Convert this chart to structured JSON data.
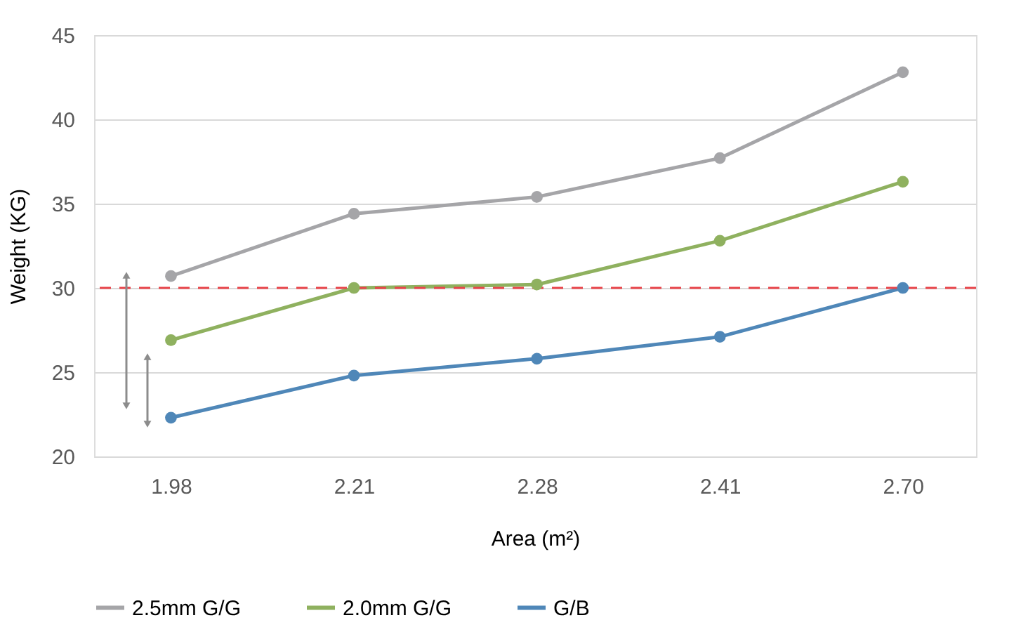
{
  "chart_data": {
    "type": "line",
    "xlabel": "Area (m²)",
    "ylabel": "Weight (KG)",
    "categories": [
      "1.98",
      "2.21",
      "2.28",
      "2.41",
      "2.70"
    ],
    "series": [
      {
        "name": "2.5mm G/G",
        "color": "#a5a5a8",
        "values": [
          30.7,
          34.4,
          35.4,
          37.7,
          42.8
        ]
      },
      {
        "name": "2.0mm G/G",
        "color": "#8fb15f",
        "values": [
          26.9,
          30.0,
          30.2,
          32.8,
          36.3
        ]
      },
      {
        "name": "G/B",
        "color": "#4f87b8",
        "values": [
          22.3,
          24.8,
          25.8,
          27.1,
          30.0
        ]
      }
    ],
    "ylim": [
      20,
      45
    ],
    "yticks": [
      20,
      25,
      30,
      35,
      40,
      45
    ],
    "grid": "y",
    "legend": "bottom",
    "marker": "circle",
    "line_style": "solid",
    "ref_lines": [
      {
        "axis": "y",
        "value": 30,
        "color": "#e8444a",
        "line_style": "dashed"
      }
    ]
  }
}
